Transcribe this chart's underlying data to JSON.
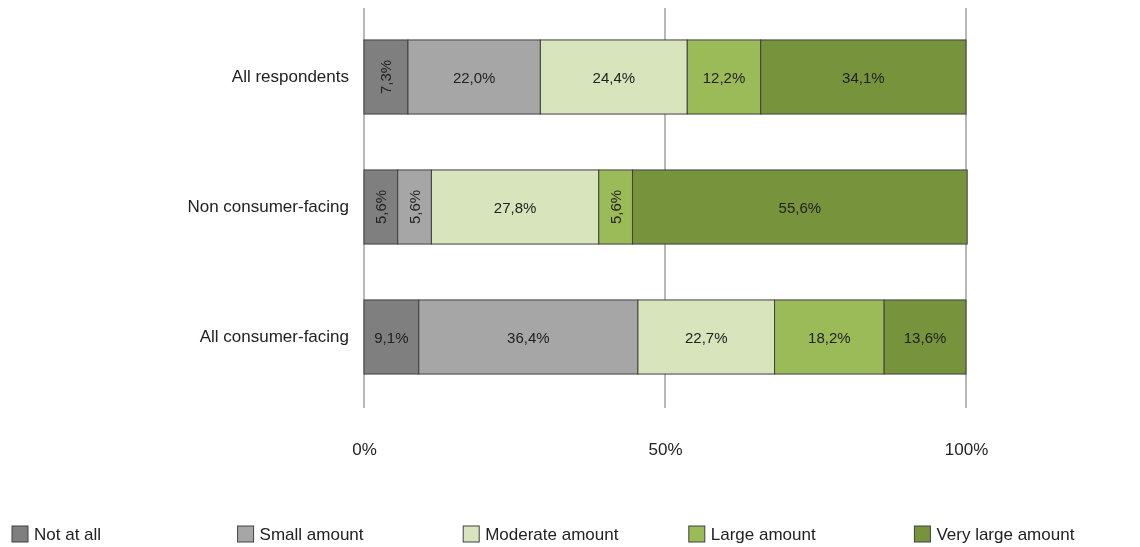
{
  "chart_data": {
    "type": "bar",
    "orientation": "horizontal",
    "stacked": true,
    "categories": [
      "All respondents",
      "Non consumer-facing",
      "All consumer-facing"
    ],
    "series": [
      {
        "name": "Not at all",
        "color": "#7f7f7f",
        "values": [
          7.3,
          5.6,
          9.1
        ],
        "value_labels": [
          "7,3%",
          "5,6%",
          "9,1%"
        ]
      },
      {
        "name": "Small amount",
        "color": "#a6a6a6",
        "values": [
          22.0,
          5.6,
          36.4
        ],
        "value_labels": [
          "22,0%",
          "5,6%",
          "36,4%"
        ]
      },
      {
        "name": "Moderate amount",
        "color": "#d8e4bc",
        "values": [
          24.4,
          27.8,
          22.7
        ],
        "value_labels": [
          "24,4%",
          "27,8%",
          "22,7%"
        ]
      },
      {
        "name": "Large amount",
        "color": "#9bbb59",
        "values": [
          12.2,
          5.6,
          18.2
        ],
        "value_labels": [
          "12,2%",
          "5,6%",
          "18,2%"
        ]
      },
      {
        "name": "Very large amount",
        "color": "#77933c",
        "values": [
          34.1,
          55.6,
          13.6
        ],
        "value_labels": [
          "34,1%",
          "55,6%",
          "13,6%"
        ]
      }
    ],
    "xlim": [
      0,
      100
    ],
    "xticks": [
      {
        "value": 0,
        "label": "0%"
      },
      {
        "value": 50,
        "label": "50%"
      },
      {
        "value": 100,
        "label": "100%"
      }
    ],
    "grid": "x",
    "legend": "bottom"
  }
}
